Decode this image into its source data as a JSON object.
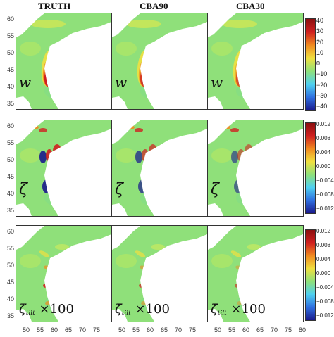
{
  "columns": [
    "TRUTH",
    "CBA90",
    "CBA30"
  ],
  "rows": [
    {
      "variable": "w",
      "label_symbol": "w",
      "label_sub": "",
      "label_suffix": "",
      "colorbar_ticks": [
        "40",
        "30",
        "20",
        "10",
        "0",
        "−10",
        "−20",
        "−30",
        "−40"
      ]
    },
    {
      "variable": "zeta",
      "label_symbol": "ζ",
      "label_sub": "",
      "label_suffix": "",
      "colorbar_ticks": [
        "0.012",
        "0.008",
        "0.004",
        "0.000",
        "−0.004",
        "−0.008",
        "−0.012"
      ]
    },
    {
      "variable": "zeta-dot-tilt",
      "label_symbol": "ζ̇",
      "label_sub": "tilt",
      "label_suffix": " ×100",
      "colorbar_ticks": [
        "0.012",
        "0.008",
        "0.004",
        "0.000",
        "−0.004",
        "−0.008",
        "−0.012"
      ]
    }
  ],
  "y_ticks": [
    "60",
    "55",
    "50",
    "45",
    "40",
    "35"
  ],
  "x_ticks": [
    "50",
    "55",
    "60",
    "65",
    "70",
    "75",
    "80"
  ],
  "colors": {
    "background_field": "#8fe07a",
    "land_mask": "#ffffff",
    "colormap": [
      "#1a1a8c",
      "#2f6fe0",
      "#4fd0f0",
      "#8fe07a",
      "#f0e040",
      "#f08a20",
      "#d02020",
      "#8c1010"
    ]
  }
}
